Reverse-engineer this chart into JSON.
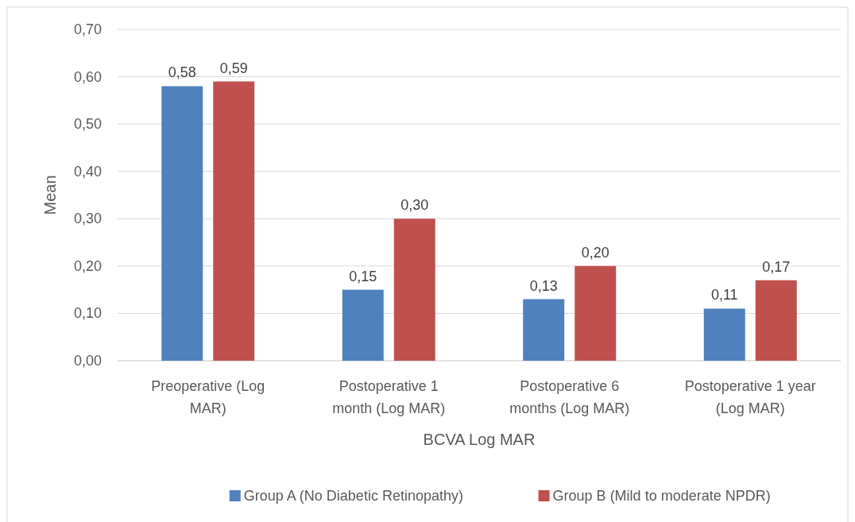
{
  "chart_data": {
    "type": "bar",
    "xlabel": "BCVA Log MAR",
    "ylabel": "Mean",
    "categories": [
      "Preoperative (Log MAR)",
      "Postoperative 1 month (Log MAR)",
      "Postoperative 6 months (Log MAR)",
      "Postoperative 1 year (Log MAR)"
    ],
    "series": [
      {
        "name": "Group A (No Diabetic Retinopathy)",
        "color": "#4f81bd",
        "values": [
          0.58,
          0.15,
          0.13,
          0.11
        ],
        "value_labels": [
          "0,58",
          "0,15",
          "0,13",
          "0,11"
        ]
      },
      {
        "name": "Group B (Mild to moderate NPDR)",
        "color": "#c0504d",
        "values": [
          0.59,
          0.3,
          0.2,
          0.17
        ],
        "value_labels": [
          "0,59",
          "0,30",
          "0,20",
          "0,17"
        ]
      }
    ],
    "ylim": [
      0,
      0.7
    ],
    "yticks": [
      {
        "value": 0,
        "label": "0,00"
      },
      {
        "value": 0.1,
        "label": "0,10"
      },
      {
        "value": 0.2,
        "label": "0,20"
      },
      {
        "value": 0.3,
        "label": "0,30"
      },
      {
        "value": 0.4,
        "label": "0,40"
      },
      {
        "value": 0.5,
        "label": "0,50"
      },
      {
        "value": 0.6,
        "label": "0,60"
      },
      {
        "value": 0.7,
        "label": "0,70"
      }
    ],
    "grid": "y",
    "legend": "bottom"
  }
}
